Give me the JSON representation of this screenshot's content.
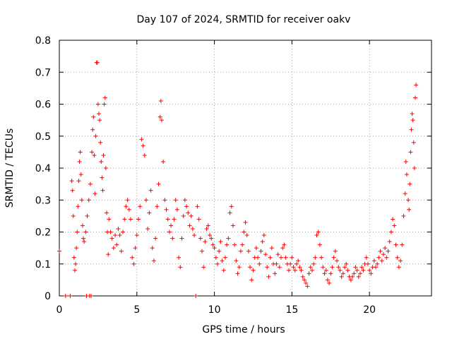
{
  "chart_data": {
    "type": "scatter",
    "title": "Day 107 of 2024, SRMTID for receiver oakv",
    "xlabel": "GPS time / hours",
    "ylabel": "SRMTID / TECUs",
    "xlim": [
      0,
      24
    ],
    "ylim": [
      0,
      0.8
    ],
    "xticks": [
      0,
      5,
      10,
      15,
      20
    ],
    "xtick_labels": [
      "0",
      "5",
      "10",
      "15",
      "20"
    ],
    "yticks": [
      0,
      0.1,
      0.2,
      0.3,
      0.4,
      0.5,
      0.6,
      0.7,
      0.8
    ],
    "ytick_labels": [
      "0",
      "0.1",
      "0.2",
      "0.3",
      "0.4",
      "0.5",
      "0.6",
      "0.7",
      "0.8"
    ],
    "grid": true,
    "marker": "+",
    "color": "#ff0000",
    "series": [
      {
        "name": "SRMTID",
        "points": [
          [
            0.0,
            0.14
          ],
          [
            0.4,
            0.0
          ],
          [
            0.7,
            0.0
          ],
          [
            0.8,
            0.36
          ],
          [
            0.85,
            0.33
          ],
          [
            0.9,
            0.25
          ],
          [
            0.95,
            0.12
          ],
          [
            1.0,
            0.08
          ],
          [
            1.05,
            0.1
          ],
          [
            1.1,
            0.15
          ],
          [
            1.15,
            0.2
          ],
          [
            1.2,
            0.28
          ],
          [
            1.25,
            0.36
          ],
          [
            1.3,
            0.42
          ],
          [
            1.35,
            0.45
          ],
          [
            1.4,
            0.38
          ],
          [
            1.45,
            0.3
          ],
          [
            1.5,
            0.22
          ],
          [
            1.55,
            0.18
          ],
          [
            1.6,
            0.17
          ],
          [
            1.7,
            0.2
          ],
          [
            1.75,
            0.0
          ],
          [
            1.8,
            0.25
          ],
          [
            1.9,
            0.3
          ],
          [
            1.95,
            0.0
          ],
          [
            2.0,
            0.35
          ],
          [
            2.05,
            0.0
          ],
          [
            2.1,
            0.45
          ],
          [
            2.15,
            0.52
          ],
          [
            2.2,
            0.56
          ],
          [
            2.25,
            0.44
          ],
          [
            2.3,
            0.32
          ],
          [
            2.35,
            0.5
          ],
          [
            2.4,
            0.73
          ],
          [
            2.45,
            0.73
          ],
          [
            2.5,
            0.6
          ],
          [
            2.55,
            0.57
          ],
          [
            2.6,
            0.55
          ],
          [
            2.65,
            0.48
          ],
          [
            2.7,
            0.42
          ],
          [
            2.75,
            0.37
          ],
          [
            2.8,
            0.33
          ],
          [
            2.85,
            0.44
          ],
          [
            2.9,
            0.6
          ],
          [
            2.95,
            0.62
          ],
          [
            3.0,
            0.4
          ],
          [
            3.05,
            0.26
          ],
          [
            3.1,
            0.2
          ],
          [
            3.15,
            0.13
          ],
          [
            3.2,
            0.24
          ],
          [
            3.3,
            0.2
          ],
          [
            3.4,
            0.18
          ],
          [
            3.5,
            0.15
          ],
          [
            3.6,
            0.19
          ],
          [
            3.7,
            0.16
          ],
          [
            3.8,
            0.21
          ],
          [
            3.9,
            0.19
          ],
          [
            4.0,
            0.14
          ],
          [
            4.1,
            0.2
          ],
          [
            4.2,
            0.24
          ],
          [
            4.3,
            0.28
          ],
          [
            4.4,
            0.3
          ],
          [
            4.5,
            0.27
          ],
          [
            4.6,
            0.24
          ],
          [
            4.7,
            0.12
          ],
          [
            4.8,
            0.1
          ],
          [
            4.9,
            0.15
          ],
          [
            5.0,
            0.19
          ],
          [
            5.1,
            0.24
          ],
          [
            5.2,
            0.28
          ],
          [
            5.3,
            0.49
          ],
          [
            5.4,
            0.47
          ],
          [
            5.5,
            0.44
          ],
          [
            5.6,
            0.3
          ],
          [
            5.7,
            0.21
          ],
          [
            5.8,
            0.26
          ],
          [
            5.9,
            0.33
          ],
          [
            6.0,
            0.15
          ],
          [
            6.1,
            0.11
          ],
          [
            6.2,
            0.18
          ],
          [
            6.3,
            0.28
          ],
          [
            6.4,
            0.35
          ],
          [
            6.5,
            0.56
          ],
          [
            6.55,
            0.61
          ],
          [
            6.6,
            0.55
          ],
          [
            6.7,
            0.42
          ],
          [
            6.8,
            0.3
          ],
          [
            6.9,
            0.27
          ],
          [
            7.0,
            0.24
          ],
          [
            7.1,
            0.2
          ],
          [
            7.2,
            0.22
          ],
          [
            7.3,
            0.18
          ],
          [
            7.4,
            0.24
          ],
          [
            7.5,
            0.3
          ],
          [
            7.6,
            0.27
          ],
          [
            7.7,
            0.12
          ],
          [
            7.8,
            0.09
          ],
          [
            7.9,
            0.18
          ],
          [
            8.0,
            0.25
          ],
          [
            8.1,
            0.3
          ],
          [
            8.2,
            0.28
          ],
          [
            8.3,
            0.26
          ],
          [
            8.4,
            0.22
          ],
          [
            8.5,
            0.25
          ],
          [
            8.6,
            0.21
          ],
          [
            8.7,
            0.19
          ],
          [
            8.8,
            0.0
          ],
          [
            8.9,
            0.28
          ],
          [
            9.0,
            0.24
          ],
          [
            9.1,
            0.18
          ],
          [
            9.2,
            0.14
          ],
          [
            9.3,
            0.09
          ],
          [
            9.4,
            0.17
          ],
          [
            9.5,
            0.21
          ],
          [
            9.6,
            0.22
          ],
          [
            9.7,
            0.19
          ],
          [
            9.8,
            0.18
          ],
          [
            9.9,
            0.16
          ],
          [
            10.0,
            0.15
          ],
          [
            10.1,
            0.12
          ],
          [
            10.2,
            0.1
          ],
          [
            10.3,
            0.14
          ],
          [
            10.4,
            0.17
          ],
          [
            10.5,
            0.11
          ],
          [
            10.6,
            0.08
          ],
          [
            10.7,
            0.12
          ],
          [
            10.8,
            0.16
          ],
          [
            10.9,
            0.18
          ],
          [
            11.0,
            0.26
          ],
          [
            11.1,
            0.28
          ],
          [
            11.2,
            0.22
          ],
          [
            11.3,
            0.16
          ],
          [
            11.4,
            0.11
          ],
          [
            11.5,
            0.07
          ],
          [
            11.6,
            0.09
          ],
          [
            11.7,
            0.14
          ],
          [
            11.8,
            0.16
          ],
          [
            11.9,
            0.2
          ],
          [
            12.0,
            0.23
          ],
          [
            12.1,
            0.19
          ],
          [
            12.2,
            0.14
          ],
          [
            12.3,
            0.09
          ],
          [
            12.4,
            0.05
          ],
          [
            12.5,
            0.08
          ],
          [
            12.6,
            0.12
          ],
          [
            12.7,
            0.15
          ],
          [
            12.8,
            0.12
          ],
          [
            12.9,
            0.1
          ],
          [
            13.0,
            0.14
          ],
          [
            13.1,
            0.17
          ],
          [
            13.2,
            0.19
          ],
          [
            13.3,
            0.13
          ],
          [
            13.4,
            0.09
          ],
          [
            13.5,
            0.06
          ],
          [
            13.6,
            0.12
          ],
          [
            13.7,
            0.15
          ],
          [
            13.8,
            0.1
          ],
          [
            13.9,
            0.07
          ],
          [
            14.0,
            0.1
          ],
          [
            14.1,
            0.13
          ],
          [
            14.2,
            0.09
          ],
          [
            14.3,
            0.12
          ],
          [
            14.4,
            0.15
          ],
          [
            14.5,
            0.16
          ],
          [
            14.6,
            0.12
          ],
          [
            14.7,
            0.1
          ],
          [
            14.8,
            0.08
          ],
          [
            14.9,
            0.1
          ],
          [
            15.0,
            0.12
          ],
          [
            15.1,
            0.09
          ],
          [
            15.2,
            0.08
          ],
          [
            15.3,
            0.1
          ],
          [
            15.4,
            0.11
          ],
          [
            15.5,
            0.09
          ],
          [
            15.6,
            0.08
          ],
          [
            15.7,
            0.06
          ],
          [
            15.8,
            0.05
          ],
          [
            15.9,
            0.04
          ],
          [
            16.0,
            0.03
          ],
          [
            16.1,
            0.07
          ],
          [
            16.2,
            0.09
          ],
          [
            16.3,
            0.08
          ],
          [
            16.4,
            0.1
          ],
          [
            16.5,
            0.12
          ],
          [
            16.6,
            0.19
          ],
          [
            16.7,
            0.2
          ],
          [
            16.8,
            0.16
          ],
          [
            16.9,
            0.12
          ],
          [
            17.0,
            0.09
          ],
          [
            17.1,
            0.07
          ],
          [
            17.2,
            0.08
          ],
          [
            17.3,
            0.05
          ],
          [
            17.4,
            0.04
          ],
          [
            17.5,
            0.07
          ],
          [
            17.6,
            0.09
          ],
          [
            17.7,
            0.12
          ],
          [
            17.8,
            0.14
          ],
          [
            17.9,
            0.11
          ],
          [
            18.0,
            0.09
          ],
          [
            18.1,
            0.08
          ],
          [
            18.2,
            0.06
          ],
          [
            18.3,
            0.07
          ],
          [
            18.4,
            0.09
          ],
          [
            18.5,
            0.1
          ],
          [
            18.6,
            0.08
          ],
          [
            18.7,
            0.06
          ],
          [
            18.8,
            0.05
          ],
          [
            18.9,
            0.06
          ],
          [
            19.0,
            0.07
          ],
          [
            19.1,
            0.09
          ],
          [
            19.2,
            0.08
          ],
          [
            19.3,
            0.06
          ],
          [
            19.4,
            0.07
          ],
          [
            19.5,
            0.09
          ],
          [
            19.6,
            0.08
          ],
          [
            19.7,
            0.1
          ],
          [
            19.8,
            0.12
          ],
          [
            19.9,
            0.1
          ],
          [
            20.0,
            0.08
          ],
          [
            20.1,
            0.07
          ],
          [
            20.2,
            0.09
          ],
          [
            20.3,
            0.11
          ],
          [
            20.4,
            0.09
          ],
          [
            20.5,
            0.1
          ],
          [
            20.6,
            0.12
          ],
          [
            20.7,
            0.14
          ],
          [
            20.8,
            0.11
          ],
          [
            20.9,
            0.13
          ],
          [
            21.0,
            0.15
          ],
          [
            21.1,
            0.12
          ],
          [
            21.2,
            0.14
          ],
          [
            21.3,
            0.17
          ],
          [
            21.4,
            0.2
          ],
          [
            21.5,
            0.24
          ],
          [
            21.6,
            0.22
          ],
          [
            21.7,
            0.16
          ],
          [
            21.8,
            0.12
          ],
          [
            21.9,
            0.09
          ],
          [
            22.0,
            0.11
          ],
          [
            22.1,
            0.16
          ],
          [
            22.2,
            0.25
          ],
          [
            22.3,
            0.32
          ],
          [
            22.35,
            0.42
          ],
          [
            22.4,
            0.38
          ],
          [
            22.5,
            0.3
          ],
          [
            22.55,
            0.27
          ],
          [
            22.6,
            0.35
          ],
          [
            22.65,
            0.45
          ],
          [
            22.7,
            0.52
          ],
          [
            22.75,
            0.57
          ],
          [
            22.8,
            0.55
          ],
          [
            22.85,
            0.48
          ],
          [
            22.9,
            0.4
          ],
          [
            22.95,
            0.62
          ],
          [
            23.0,
            0.66
          ]
        ]
      }
    ]
  }
}
